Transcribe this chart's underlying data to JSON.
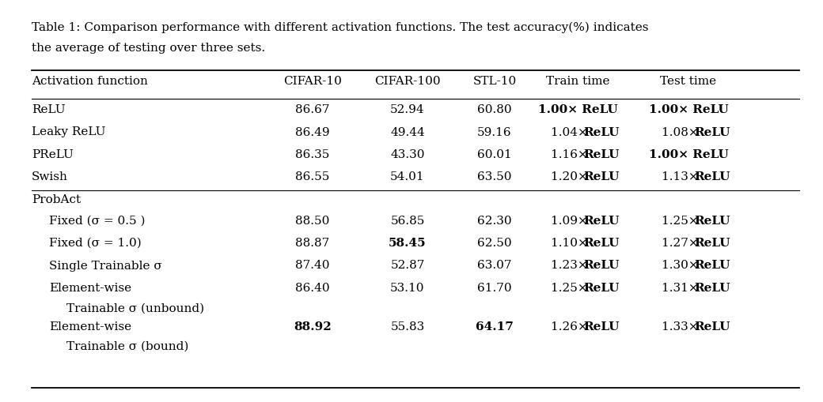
{
  "caption_line1": "Table 1: Comparison performance with different activation functions. The test accuracy(%) indicates",
  "caption_line2": "the average of testing over three sets.",
  "headers": [
    "Activation function",
    "CIFAR-10",
    "CIFAR-100",
    "STL-10",
    "Train time",
    "Test time"
  ],
  "rows": [
    {
      "label": [
        "ReLU"
      ],
      "label_bold": [
        false
      ],
      "indent": 0,
      "group": "baseline",
      "cifar10": "86.67",
      "cifar10_bold": false,
      "cifar100": "52.94",
      "cifar100_bold": false,
      "stl10": "60.80",
      "stl10_bold": false,
      "train_time_prefix": "1.00× ",
      "train_time_bold": true,
      "test_time_prefix": "1.00× ",
      "test_time_bold": true
    },
    {
      "label": [
        "Leaky ReLU"
      ],
      "label_bold": [
        false
      ],
      "indent": 0,
      "group": "baseline",
      "cifar10": "86.49",
      "cifar10_bold": false,
      "cifar100": "49.44",
      "cifar100_bold": false,
      "stl10": "59.16",
      "stl10_bold": false,
      "train_time_prefix": "1.04× ",
      "train_time_bold": false,
      "test_time_prefix": "1.08× ",
      "test_time_bold": false
    },
    {
      "label": [
        "PReLU"
      ],
      "label_bold": [
        false
      ],
      "indent": 0,
      "group": "baseline",
      "cifar10": "86.35",
      "cifar10_bold": false,
      "cifar100": "43.30",
      "cifar100_bold": false,
      "stl10": "60.01",
      "stl10_bold": false,
      "train_time_prefix": "1.16× ",
      "train_time_bold": false,
      "test_time_prefix": "1.00× ",
      "test_time_bold": true
    },
    {
      "label": [
        "Swish"
      ],
      "label_bold": [
        false
      ],
      "indent": 0,
      "group": "baseline",
      "cifar10": "86.55",
      "cifar10_bold": false,
      "cifar100": "54.01",
      "cifar100_bold": false,
      "stl10": "63.50",
      "stl10_bold": false,
      "train_time_prefix": "1.20× ",
      "train_time_bold": false,
      "test_time_prefix": "1.13× ",
      "test_time_bold": false
    },
    {
      "label": [
        "ProbAct"
      ],
      "label_bold": [
        false
      ],
      "indent": 0,
      "group": "probact_header",
      "cifar10": "",
      "cifar10_bold": false,
      "cifar100": "",
      "cifar100_bold": false,
      "stl10": "",
      "stl10_bold": false,
      "train_time_prefix": "",
      "train_time_bold": false,
      "test_time_prefix": "",
      "test_time_bold": false
    },
    {
      "label": [
        "Fixed (σ = 0.5 )"
      ],
      "label_bold": [
        false
      ],
      "indent": 1,
      "group": "probact",
      "cifar10": "88.50",
      "cifar10_bold": false,
      "cifar100": "56.85",
      "cifar100_bold": false,
      "stl10": "62.30",
      "stl10_bold": false,
      "train_time_prefix": "1.09× ",
      "train_time_bold": false,
      "test_time_prefix": "1.25× ",
      "test_time_bold": false
    },
    {
      "label": [
        "Fixed (σ = 1.0)"
      ],
      "label_bold": [
        false
      ],
      "indent": 1,
      "group": "probact",
      "cifar10": "88.87",
      "cifar10_bold": false,
      "cifar100": "58.45",
      "cifar100_bold": true,
      "stl10": "62.50",
      "stl10_bold": false,
      "train_time_prefix": "1.10× ",
      "train_time_bold": false,
      "test_time_prefix": "1.27× ",
      "test_time_bold": false
    },
    {
      "label": [
        "Single Trainable σ"
      ],
      "label_bold": [
        false
      ],
      "indent": 1,
      "group": "probact",
      "cifar10": "87.40",
      "cifar10_bold": false,
      "cifar100": "52.87",
      "cifar100_bold": false,
      "stl10": "63.07",
      "stl10_bold": false,
      "train_time_prefix": "1.23× ",
      "train_time_bold": false,
      "test_time_prefix": "1.30× ",
      "test_time_bold": false
    },
    {
      "label": [
        "Element-wise",
        "Trainable σ (unbound)"
      ],
      "label_bold": [
        false,
        false
      ],
      "indent": 1,
      "group": "probact",
      "cifar10": "86.40",
      "cifar10_bold": false,
      "cifar100": "53.10",
      "cifar100_bold": false,
      "stl10": "61.70",
      "stl10_bold": false,
      "train_time_prefix": "1.25× ",
      "train_time_bold": false,
      "test_time_prefix": "1.31× ",
      "test_time_bold": false
    },
    {
      "label": [
        "Element-wise",
        "Trainable σ (bound)"
      ],
      "label_bold": [
        false,
        false
      ],
      "indent": 1,
      "group": "probact",
      "cifar10": "88.92",
      "cifar10_bold": true,
      "cifar100": "55.83",
      "cifar100_bold": false,
      "stl10": "64.17",
      "stl10_bold": true,
      "train_time_prefix": "1.26× ",
      "train_time_bold": false,
      "test_time_prefix": "1.33× ",
      "test_time_bold": false
    }
  ],
  "bg_color": "#ffffff",
  "line_color": "#000000",
  "fontsize": 11.0,
  "fig_width": 10.4,
  "fig_height": 5.1
}
